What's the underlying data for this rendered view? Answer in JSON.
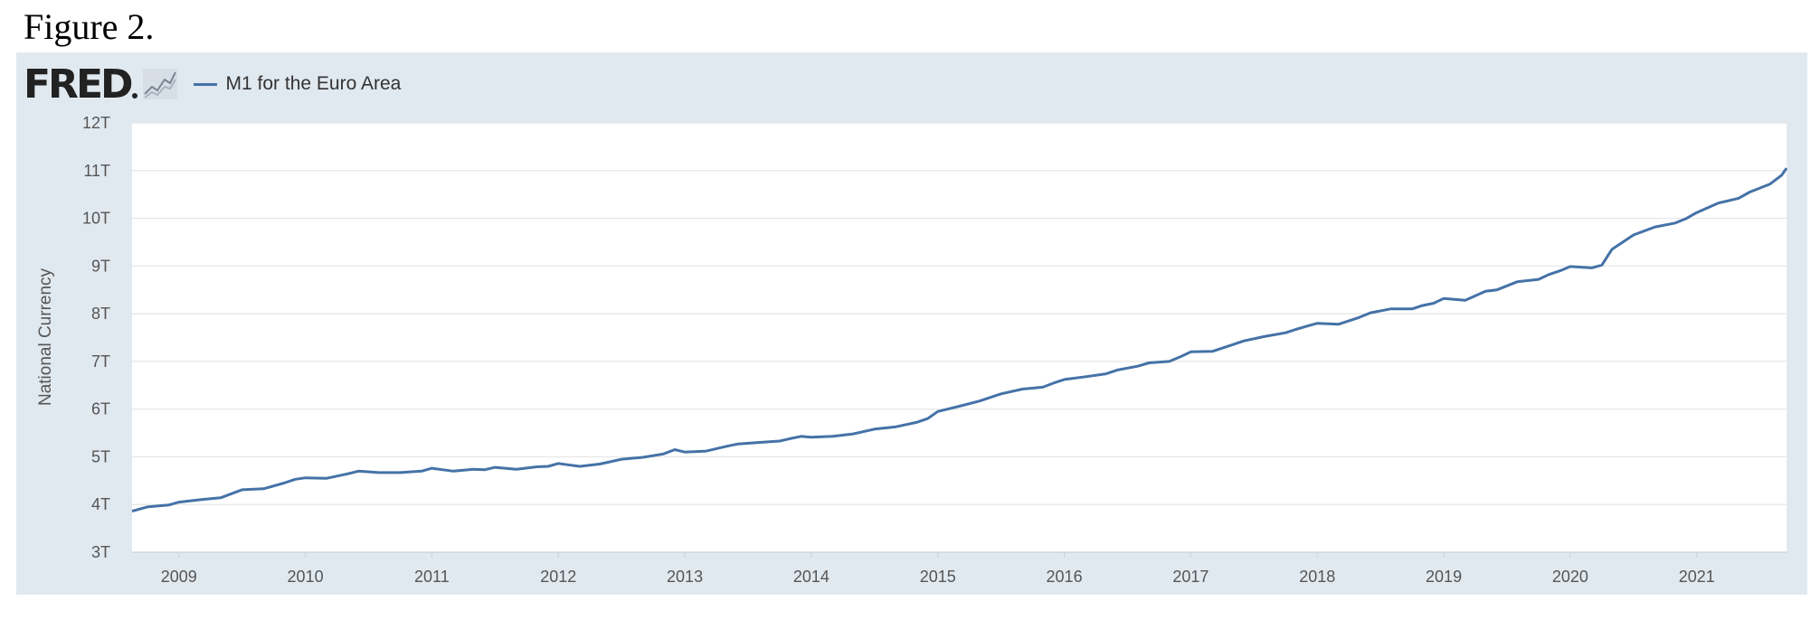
{
  "figure": {
    "caption": "Figure 2."
  },
  "header": {
    "logo_text": "FRED",
    "legend_label": "M1 for the Euro Area"
  },
  "colors": {
    "panel_bg": "#e1e9f0",
    "plot_bg": "#ffffff",
    "series": "#4572a7",
    "grid": "#e6e6e6"
  },
  "chart_data": {
    "type": "line",
    "title": "",
    "xlabel": "",
    "ylabel": "National Currency",
    "grid": true,
    "legend_position": "top-left",
    "xlim": [
      2008.63,
      2021.71
    ],
    "ylim": [
      3,
      12
    ],
    "x_ticks": [
      2009,
      2010,
      2011,
      2012,
      2013,
      2014,
      2015,
      2016,
      2017,
      2018,
      2019,
      2020,
      2021
    ],
    "y_ticks": [
      {
        "value": 3,
        "label": "3T"
      },
      {
        "value": 4,
        "label": "4T"
      },
      {
        "value": 5,
        "label": "5T"
      },
      {
        "value": 6,
        "label": "6T"
      },
      {
        "value": 7,
        "label": "7T"
      },
      {
        "value": 8,
        "label": "8T"
      },
      {
        "value": 9,
        "label": "9T"
      },
      {
        "value": 10,
        "label": "10T"
      },
      {
        "value": 11,
        "label": "11T"
      },
      {
        "value": 12,
        "label": "12T"
      }
    ],
    "series": [
      {
        "name": "M1 for the Euro Area",
        "color": "#4572a7",
        "points": [
          [
            2008.63,
            3.86
          ],
          [
            2008.75,
            3.95
          ],
          [
            2008.92,
            3.99
          ],
          [
            2009.0,
            4.05
          ],
          [
            2009.17,
            4.1
          ],
          [
            2009.33,
            4.14
          ],
          [
            2009.5,
            4.31
          ],
          [
            2009.67,
            4.33
          ],
          [
            2009.83,
            4.45
          ],
          [
            2009.92,
            4.53
          ],
          [
            2010.0,
            4.56
          ],
          [
            2010.17,
            4.55
          ],
          [
            2010.33,
            4.64
          ],
          [
            2010.42,
            4.7
          ],
          [
            2010.58,
            4.67
          ],
          [
            2010.75,
            4.67
          ],
          [
            2010.92,
            4.7
          ],
          [
            2011.0,
            4.76
          ],
          [
            2011.17,
            4.7
          ],
          [
            2011.33,
            4.74
          ],
          [
            2011.42,
            4.73
          ],
          [
            2011.5,
            4.78
          ],
          [
            2011.67,
            4.74
          ],
          [
            2011.83,
            4.79
          ],
          [
            2011.92,
            4.8
          ],
          [
            2012.0,
            4.86
          ],
          [
            2012.17,
            4.8
          ],
          [
            2012.33,
            4.85
          ],
          [
            2012.5,
            4.95
          ],
          [
            2012.67,
            4.99
          ],
          [
            2012.83,
            5.06
          ],
          [
            2012.92,
            5.15
          ],
          [
            2013.0,
            5.1
          ],
          [
            2013.17,
            5.12
          ],
          [
            2013.33,
            5.22
          ],
          [
            2013.42,
            5.27
          ],
          [
            2013.58,
            5.3
          ],
          [
            2013.75,
            5.33
          ],
          [
            2013.83,
            5.38
          ],
          [
            2013.92,
            5.43
          ],
          [
            2014.0,
            5.41
          ],
          [
            2014.17,
            5.43
          ],
          [
            2014.33,
            5.48
          ],
          [
            2014.5,
            5.58
          ],
          [
            2014.67,
            5.63
          ],
          [
            2014.83,
            5.72
          ],
          [
            2014.92,
            5.8
          ],
          [
            2015.0,
            5.95
          ],
          [
            2015.17,
            6.06
          ],
          [
            2015.33,
            6.17
          ],
          [
            2015.5,
            6.32
          ],
          [
            2015.67,
            6.42
          ],
          [
            2015.83,
            6.46
          ],
          [
            2015.92,
            6.55
          ],
          [
            2016.0,
            6.62
          ],
          [
            2016.17,
            6.68
          ],
          [
            2016.33,
            6.74
          ],
          [
            2016.42,
            6.82
          ],
          [
            2016.58,
            6.9
          ],
          [
            2016.67,
            6.97
          ],
          [
            2016.83,
            7.0
          ],
          [
            2016.92,
            7.1
          ],
          [
            2017.0,
            7.2
          ],
          [
            2017.17,
            7.21
          ],
          [
            2017.33,
            7.35
          ],
          [
            2017.42,
            7.43
          ],
          [
            2017.58,
            7.52
          ],
          [
            2017.75,
            7.6
          ],
          [
            2017.83,
            7.67
          ],
          [
            2017.92,
            7.74
          ],
          [
            2018.0,
            7.8
          ],
          [
            2018.17,
            7.78
          ],
          [
            2018.33,
            7.92
          ],
          [
            2018.42,
            8.02
          ],
          [
            2018.58,
            8.1
          ],
          [
            2018.75,
            8.1
          ],
          [
            2018.83,
            8.17
          ],
          [
            2018.92,
            8.22
          ],
          [
            2019.0,
            8.32
          ],
          [
            2019.17,
            8.28
          ],
          [
            2019.33,
            8.47
          ],
          [
            2019.42,
            8.5
          ],
          [
            2019.58,
            8.67
          ],
          [
            2019.75,
            8.72
          ],
          [
            2019.83,
            8.82
          ],
          [
            2019.92,
            8.9
          ],
          [
            2020.0,
            8.99
          ],
          [
            2020.17,
            8.96
          ],
          [
            2020.25,
            9.02
          ],
          [
            2020.33,
            9.35
          ],
          [
            2020.5,
            9.65
          ],
          [
            2020.67,
            9.82
          ],
          [
            2020.83,
            9.9
          ],
          [
            2020.92,
            10.0
          ],
          [
            2021.0,
            10.12
          ],
          [
            2021.17,
            10.32
          ],
          [
            2021.33,
            10.42
          ],
          [
            2021.42,
            10.55
          ],
          [
            2021.58,
            10.72
          ],
          [
            2021.67,
            10.9
          ],
          [
            2021.71,
            11.05
          ]
        ]
      }
    ]
  }
}
